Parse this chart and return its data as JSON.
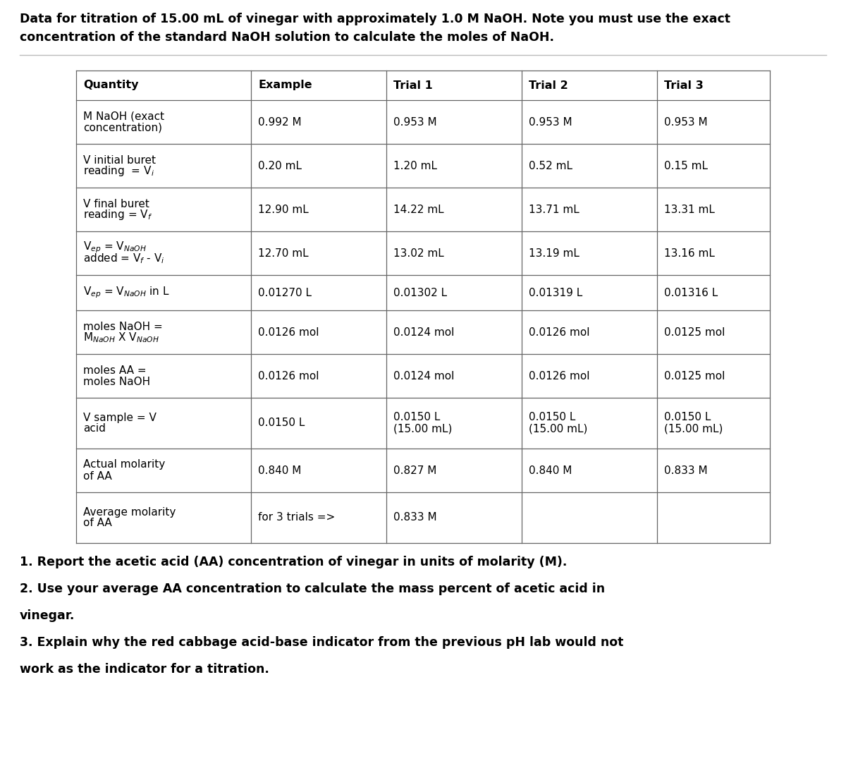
{
  "title_line1": "Data for titration of 15.00 mL of vinegar with approximately 1.0 M NaOH. Note you must use the exact",
  "title_line2": "concentration of the standard NaOH solution to calculate the moles of NaOH.",
  "col_headers": [
    "Quantity",
    "Example",
    "Trial 1",
    "Trial 2",
    "Trial 3"
  ],
  "rows": [
    [
      "M NaOH (exact\nconcentration)",
      "0.992 M",
      "0.953 M",
      "0.953 M",
      "0.953 M"
    ],
    [
      "V initial buret\nreading  = V$_i$",
      "0.20 mL",
      "1.20 mL",
      "0.52 mL",
      "0.15 mL"
    ],
    [
      "V final buret\nreading = V$_f$",
      "12.90 mL",
      "14.22 mL",
      "13.71 mL",
      "13.31 mL"
    ],
    [
      "V$_{ep}$ = V$_{NaOH}$\nadded = V$_f$ - V$_i$",
      "12.70 mL",
      "13.02 mL",
      "13.19 mL",
      "13.16 mL"
    ],
    [
      "V$_{ep}$ = V$_{NaOH}$ in L",
      "0.01270 L",
      "0.01302 L",
      "0.01319 L",
      "0.01316 L"
    ],
    [
      "moles NaOH =\nM$_{NaOH}$ X V$_{NaOH}$",
      "0.0126 mol",
      "0.0124 mol",
      "0.0126 mol",
      "0.0125 mol"
    ],
    [
      "moles AA =\nmoles NaOH",
      "0.0126 mol",
      "0.0124 mol",
      "0.0126 mol",
      "0.0125 mol"
    ],
    [
      "V sample = V\nacid",
      "0.0150 L",
      "0.0150 L\n(15.00 mL)",
      "0.0150 L\n(15.00 mL)",
      "0.0150 L\n(15.00 mL)"
    ],
    [
      "Actual molarity\nof AA",
      "0.840 M",
      "0.827 M",
      "0.840 M",
      "0.833 M"
    ],
    [
      "Average molarity\nof AA",
      "for 3 trials =>",
      "0.833 M",
      "",
      ""
    ]
  ],
  "questions": [
    "1. Report the acetic acid (AA) concentration of vinegar in units of molarity (M).",
    "2. Use your average AA concentration to calculate the mass percent of acetic acid in",
    "vinegar.",
    "3. Explain why the red cabbage acid-base indicator from the previous pH lab would not",
    "work as the indicator for a titration."
  ],
  "bg_color": "#ffffff",
  "text_color": "#000000",
  "border_color": "#666666",
  "title_fontsize": 12.5,
  "header_fontsize": 11.5,
  "cell_fontsize": 11,
  "question_fontsize": 12.5
}
